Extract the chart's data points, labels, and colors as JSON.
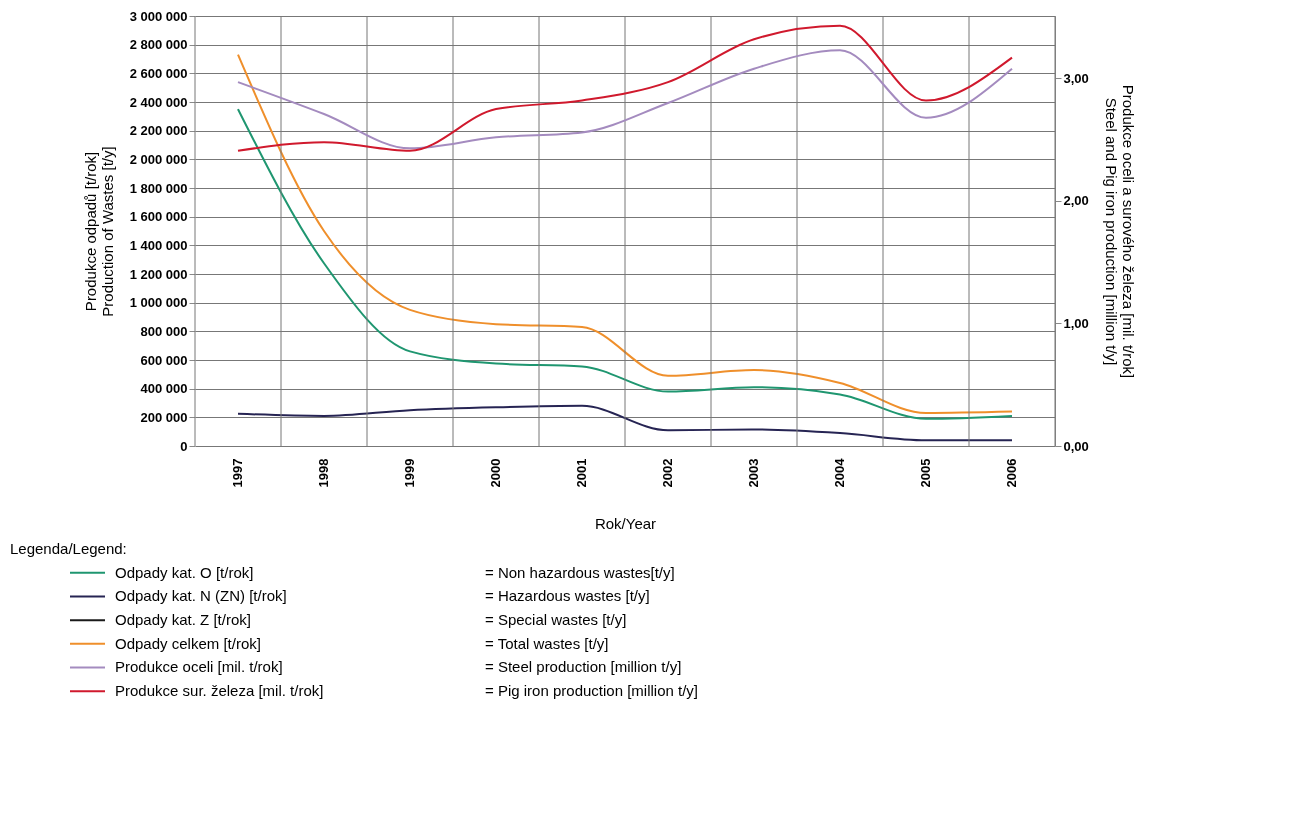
{
  "chart_data": {
    "type": "line",
    "xlabel": "Rok/Year",
    "ylabel": "Produkce odpadů [t/rok]\nProduction of Wastes [t/y]",
    "y2label": "Produkce oceli a surového železa [mil. t/rok]\nSteel and Pig iron production [million t/y]",
    "legend_title": "Legenda/Legend:",
    "categories": [
      "1997",
      "1998",
      "1999",
      "2000",
      "2001",
      "2002",
      "2003",
      "2004",
      "2005",
      "2006"
    ],
    "series": [
      {
        "name": "Odpady kat. O [t/rok]",
        "color": "#1f9670",
        "values": [
          2350000,
          1275000,
          660000,
          575000,
          555000,
          380000,
          410000,
          360000,
          190000,
          210000
        ]
      },
      {
        "name": "Odpady kat. N (ZN) [t/rok]",
        "color": "#262453",
        "values": [
          225000,
          210000,
          250000,
          270000,
          280000,
          110000,
          115000,
          90000,
          40000,
          40000
        ]
      },
      {
        "name": "Odpady kat. Z [t/rok]",
        "color": "#1a1a1a",
        "values": [
          null,
          null,
          null,
          null,
          null,
          null,
          null,
          null,
          null,
          null
        ]
      },
      {
        "name": "Odpady celkem [t/rok]",
        "color": "#ef8f2b",
        "values": [
          2730000,
          1500000,
          950000,
          850000,
          830000,
          490000,
          530000,
          440000,
          230000,
          240000
        ]
      },
      {
        "name": "Produkce oceli [mil. t/rok]",
        "color": "#a48bbf",
        "axis": "y2",
        "values": [
          2.97,
          2.71,
          2.43,
          2.52,
          2.56,
          2.8,
          3.08,
          3.23,
          2.68,
          3.08
        ]
      },
      {
        "name": "Produkce sur. železa [mil. t/rok]",
        "color": "#d0192d",
        "axis": "y2",
        "values": [
          2.41,
          2.48,
          2.41,
          2.75,
          2.82,
          2.97,
          3.32,
          3.43,
          2.82,
          3.17
        ]
      }
    ],
    "annotations": [
      "= Non hazardous wastes[t/y]",
      "= Hazardous wastes [t/y]",
      "= Special wastes [t/y]",
      "= Total wastes [t/y]",
      "= Steel production [million t/y]",
      "= Pig iron production [million t/y]"
    ],
    "ylim": [
      0,
      3000000
    ],
    "yticks": [
      {
        "value": 0,
        "label": "0"
      },
      {
        "value": 200000,
        "label": "200 000"
      },
      {
        "value": 400000,
        "label": "400 000"
      },
      {
        "value": 600000,
        "label": "600 000"
      },
      {
        "value": 800000,
        "label": "800 000"
      },
      {
        "value": 1000000,
        "label": "1 000 000"
      },
      {
        "value": 1200000,
        "label": "1 200 000"
      },
      {
        "value": 1400000,
        "label": "1 400 000"
      },
      {
        "value": 1600000,
        "label": "1 600 000"
      },
      {
        "value": 1800000,
        "label": "1 800 000"
      },
      {
        "value": 2000000,
        "label": "2 000 000"
      },
      {
        "value": 2200000,
        "label": "2 200 000"
      },
      {
        "value": 2400000,
        "label": "2 400 000"
      },
      {
        "value": 2600000,
        "label": "2 600 000"
      },
      {
        "value": 2800000,
        "label": "2 800 000"
      },
      {
        "value": 3000000,
        "label": "3 000 000"
      }
    ],
    "y2lim": [
      0,
      3.51
    ],
    "y2ticks": [
      {
        "value": 0,
        "label": "0,00"
      },
      {
        "value": 1,
        "label": "1,00"
      },
      {
        "value": 2,
        "label": "2,00"
      },
      {
        "value": 3,
        "label": "3,00"
      }
    ],
    "grid": true,
    "legend": "bottom",
    "marker": "none",
    "line_style": "solid"
  }
}
